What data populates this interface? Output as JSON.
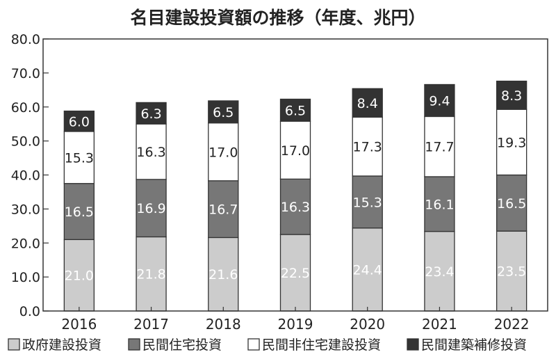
{
  "chart_data": {
    "type": "bar",
    "stacked": true,
    "title": "名目建設投資額の推移（年度、兆円）",
    "categories": [
      "2016",
      "2017",
      "2018",
      "2019",
      "2020",
      "2021",
      "2022"
    ],
    "ylim": [
      0,
      80
    ],
    "yticks": [
      "0.0",
      "10.0",
      "20.0",
      "30.0",
      "40.0",
      "50.0",
      "60.0",
      "70.0",
      "80.0"
    ],
    "grid": false,
    "legend_position": "bottom",
    "series": [
      {
        "name": "政府建設投資",
        "color": "#cccccc",
        "label_color": "#ffffff",
        "values": [
          21.0,
          21.8,
          21.6,
          22.5,
          24.4,
          23.4,
          23.5
        ],
        "labels": [
          "21.0",
          "21.8",
          "21.6",
          "22.5",
          "24.4",
          "23.4",
          "23.5"
        ]
      },
      {
        "name": "民間住宅投資",
        "color": "#777777",
        "label_color": "#ffffff",
        "values": [
          16.5,
          16.9,
          16.7,
          16.3,
          15.3,
          16.1,
          16.5
        ],
        "labels": [
          "16.5",
          "16.9",
          "16.7",
          "16.3",
          "15.3",
          "16.1",
          "16.5"
        ]
      },
      {
        "name": "民間非住宅建設投資",
        "color": "#ffffff",
        "label_color": "#222222",
        "values": [
          15.3,
          16.3,
          17.0,
          17.0,
          17.3,
          17.7,
          19.3
        ],
        "labels": [
          "15.3",
          "16.3",
          "17.0",
          "17.0",
          "17.3",
          "17.7",
          "19.3"
        ]
      },
      {
        "name": "民間建築補修投資",
        "color": "#333333",
        "label_color": "#ffffff",
        "values": [
          6.0,
          6.3,
          6.5,
          6.5,
          8.4,
          9.4,
          8.3
        ],
        "labels": [
          "6.0",
          "6.3",
          "6.5",
          "6.5",
          "8.4",
          "9.4",
          "8.3"
        ]
      }
    ]
  }
}
